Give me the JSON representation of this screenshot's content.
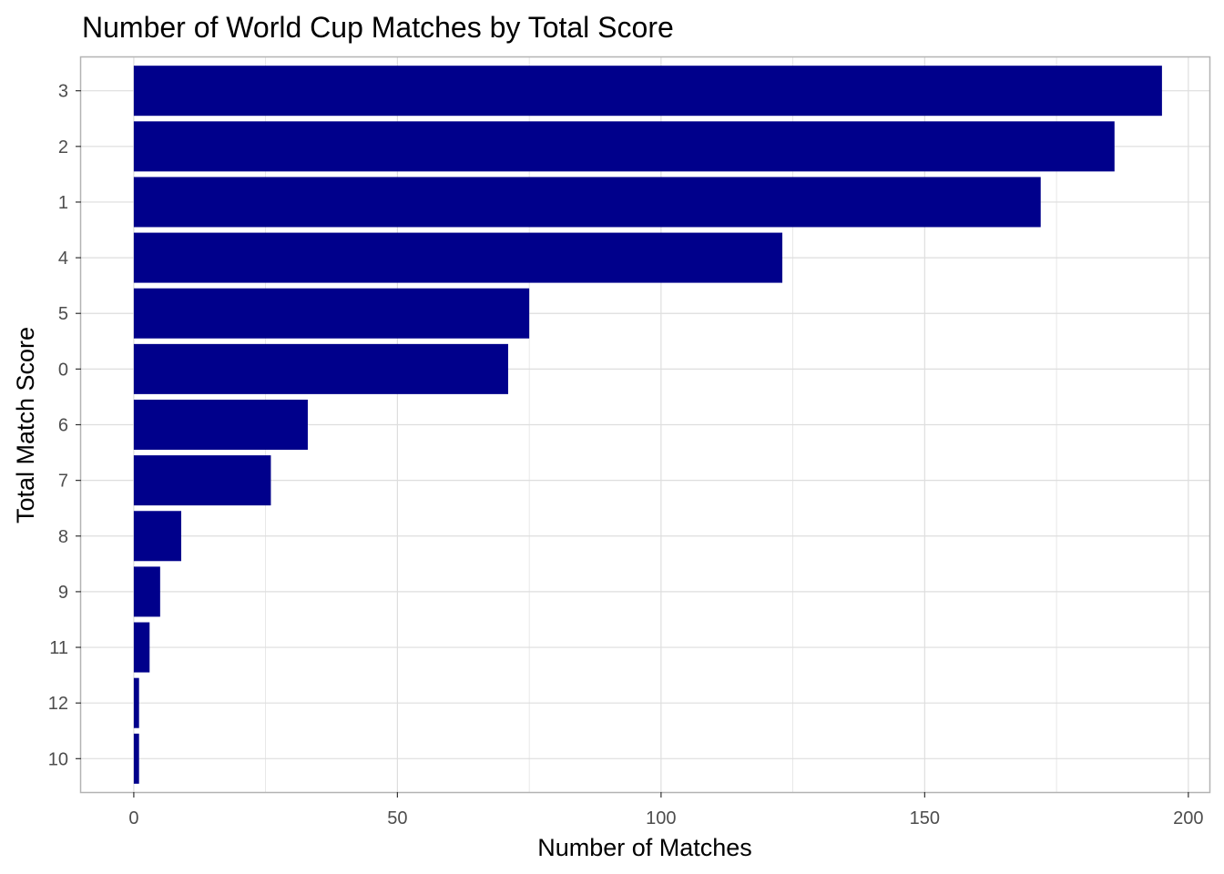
{
  "chart_data": {
    "type": "bar",
    "orientation": "horizontal",
    "title": "Number of World Cup Matches by Total Score",
    "xlabel": "Number of Matches",
    "ylabel": "Total Match Score",
    "categories": [
      "3",
      "2",
      "1",
      "4",
      "5",
      "0",
      "6",
      "7",
      "8",
      "9",
      "11",
      "12",
      "10"
    ],
    "values": [
      195,
      186,
      172,
      123,
      75,
      71,
      33,
      26,
      9,
      5,
      3,
      1,
      1
    ],
    "xlim": [
      -10,
      204
    ],
    "xticks": [
      0,
      50,
      100,
      150,
      200
    ],
    "xtick_labels": [
      "0",
      "50",
      "100",
      "150",
      "200"
    ],
    "grid": true,
    "bar_color": "#00008b",
    "grid_color": "#dedede",
    "frame_color": "#b3b3b3"
  }
}
